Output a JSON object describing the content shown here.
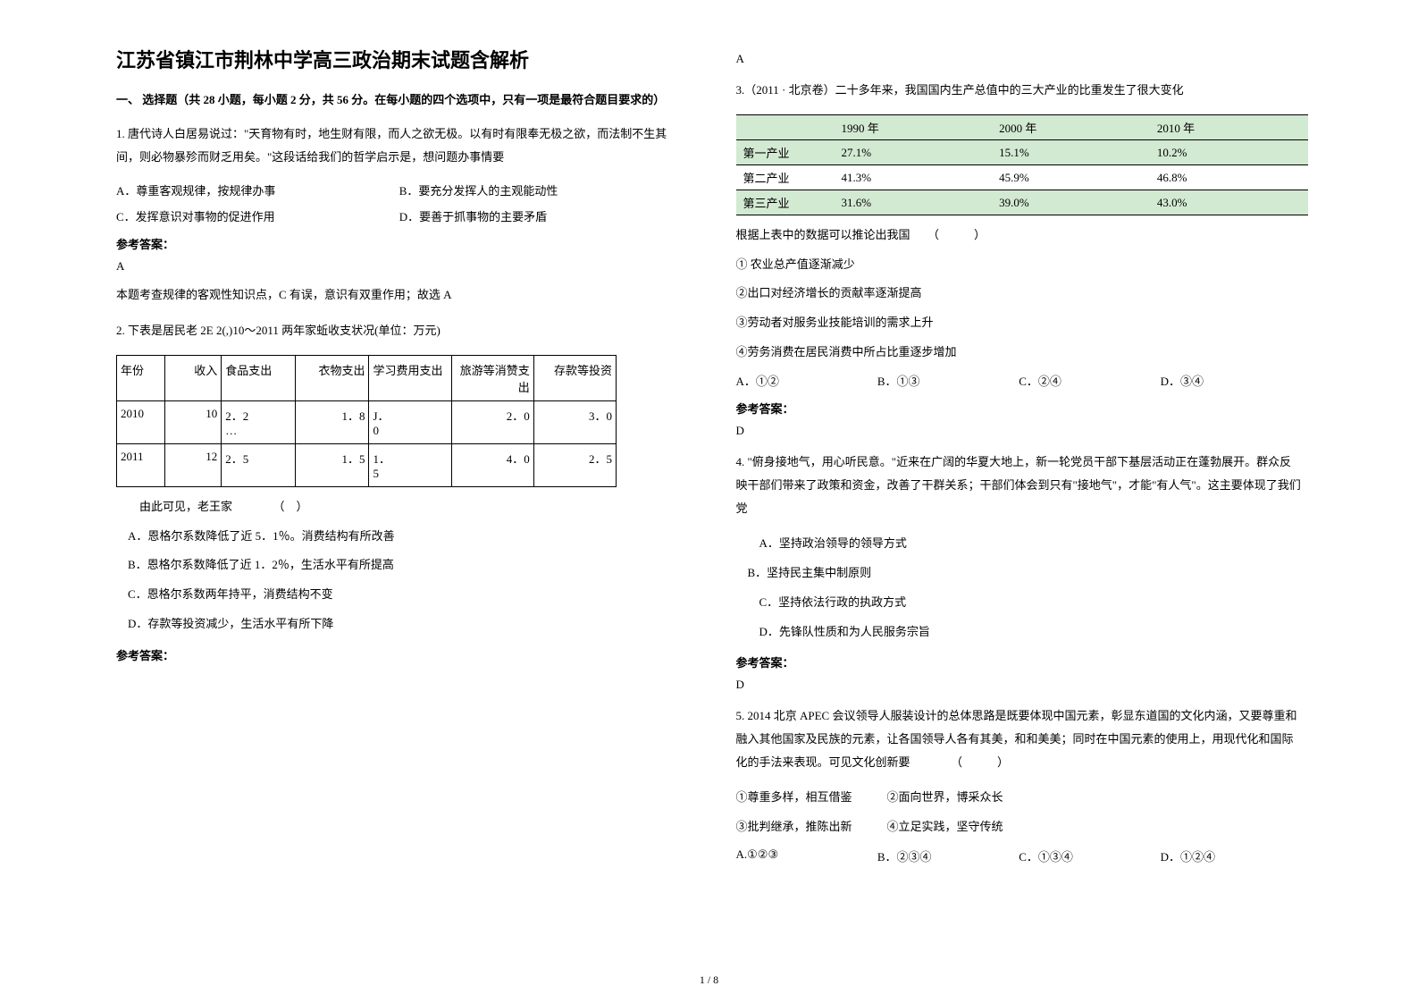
{
  "title": "江苏省镇江市荆林中学高三政治期末试题含解析",
  "section_heading": "一、 选择题（共 28 小题，每小题 2 分，共 56 分。在每小题的四个选项中，只有一项是最符合题目要求的）",
  "q1": {
    "stem": "1. 唐代诗人白居易说过：\"天育物有时，地生财有限，而人之欲无极。以有时有限奉无极之欲，而法制不生其间，则必物暴殄而财乏用矣。\"这段话给我们的哲学启示是，想问题办事情要",
    "a": "A．尊重客观规律，按规律办事",
    "b": "B．要充分发挥人的主观能动性",
    "c": "C．发挥意识对事物的促进作用",
    "d": "D．要善于抓事物的主要矛盾",
    "answer_label": "参考答案：",
    "answer": "A",
    "explain": "本题考查规律的客观性知识点，C 有误，意识有双重作用；故选 A"
  },
  "q2": {
    "stem": "2. 下表是居民老 2E 2(,)10～2011 两年家蚯收支状况(单位：万元)",
    "table": {
      "header": [
        "年份",
        "收入",
        "食品支出",
        "衣物支出",
        "学习费用支出",
        "旅游等消赞支出",
        "存款等投资"
      ],
      "rows": [
        [
          "2010",
          "10",
          "2．2\n…",
          "1．8",
          "J．\n0",
          "2．0",
          "3．0"
        ],
        [
          "2011",
          "12",
          "2．5",
          "1．5",
          "1．\n5",
          "4．0",
          "2．5"
        ]
      ]
    },
    "sub": "　　由此可见，老王家　　　　（　）",
    "a": "　A．恩格尔系数降低了近 5．1％。消费结构有所改善",
    "b": "　B．恩格尔系数降低了近 1．2％，生活水平有所提高",
    "c": "　C．恩格尔系数两年持平，消费结构不变",
    "d": "　D．存款等投资减少，生活水平有所下降",
    "answer_label": "参考答案：",
    "answer": "A"
  },
  "q3": {
    "stem": "3.（2011 · 北京卷）二十多年来，我国国内生产总值中的三大产业的比重发生了很大变化",
    "table": {
      "header": [
        "",
        "1990 年",
        "2000 年",
        "2010 年"
      ],
      "rows": [
        [
          "第一产业",
          "27.1%",
          "15.1%",
          "10.2%"
        ],
        [
          "第二产业",
          "41.3%",
          "45.9%",
          "46.8%"
        ],
        [
          "第三产业",
          "31.6%",
          "39.0%",
          "43.0%"
        ]
      ]
    },
    "sub": "根据上表中的数据可以推论出我国　　（　　　）",
    "s1": "① 农业总产值逐渐减少",
    "s2": "②出口对经济增长的贡献率逐渐提高",
    "s3": "③劳动者对服务业技能培训的需求上升",
    "s4": "④劳务消费在居民消费中所占比重逐步增加",
    "a": "A．①②",
    "b": "B．①③",
    "c": "C．②④",
    "d": "D．③④",
    "answer_label": "参考答案：",
    "answer": "D"
  },
  "q4": {
    "stem": "4. \"俯身接地气，用心听民意。\"近来在广阔的华夏大地上，新一轮党员干部下基层活动正在蓬勃展开。群众反映干部们带来了政策和资金，改善了干群关系；干部们体会到只有\"接地气\"，才能\"有人气\"。这主要体现了我们党",
    "a": "　　A．坚持政治领导的领导方式",
    "b": "　B．坚持民主集中制原则",
    "c": "　　C．坚持依法行政的执政方式",
    "d": "　　D．先锋队性质和为人民服务宗旨",
    "answer_label": "参考答案：",
    "answer": "D"
  },
  "q5": {
    "stem": "5. 2014 北京 APEC 会议领导人服装设计的总体思路是既要体现中国元素，彰显东道国的文化内涵，又要尊重和融入其他国家及民族的元素，让各国领导人各有其美，和和美美；同时在中国元素的使用上，用现代化和国际化的手法来表现。可见文化创新要　　　　（　　　）",
    "s1": "①尊重多样，相互借鉴　　　②面向世界，博采众长",
    "s2": "③批判继承，推陈出新　　　④立足实践，坚守传统",
    "a": "A.①②③",
    "b": "B．②③④",
    "c": "C．①③④",
    "d": "D．①②④"
  },
  "page_num": "1 / 8"
}
